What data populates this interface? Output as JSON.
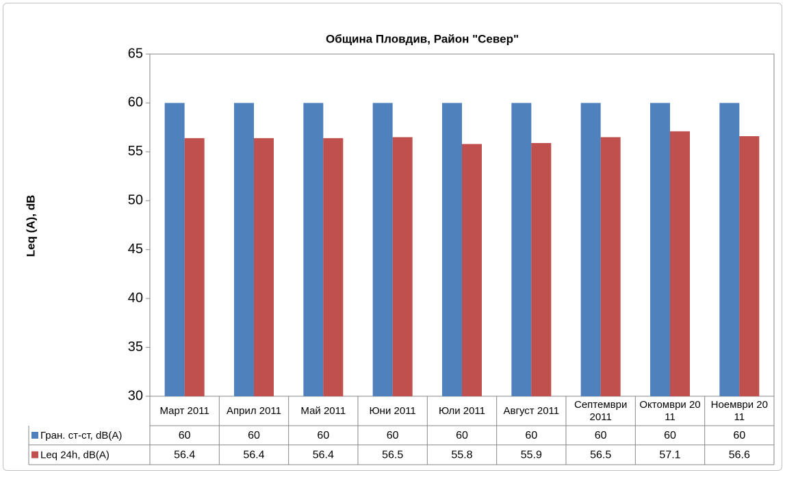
{
  "chart_data": {
    "type": "bar",
    "title": "Община Пловдив, Район \"Север\"",
    "y_label": "Leq (A), dB",
    "categories": [
      "Март 2011",
      "Април 2011",
      "Май 2011",
      "Юни 2011",
      "Юли 2011",
      "Август 2011",
      "Септември 2011",
      "Октомври 2011",
      "Ноември 2011"
    ],
    "series": [
      {
        "name": "Гран. ст-ст, dB(A)",
        "color": "#4f81bd",
        "values": [
          60,
          60,
          60,
          60,
          60,
          60,
          60,
          60,
          60
        ]
      },
      {
        "name": "Leq 24h, dB(A)",
        "color": "#c0504d",
        "values": [
          56.4,
          56.4,
          56.4,
          56.5,
          55.8,
          55.9,
          56.5,
          57.1,
          56.6
        ]
      }
    ],
    "ylim": [
      30,
      65
    ],
    "yticks": [
      30,
      35,
      40,
      45,
      50,
      55,
      60,
      65
    ],
    "grid": false
  }
}
